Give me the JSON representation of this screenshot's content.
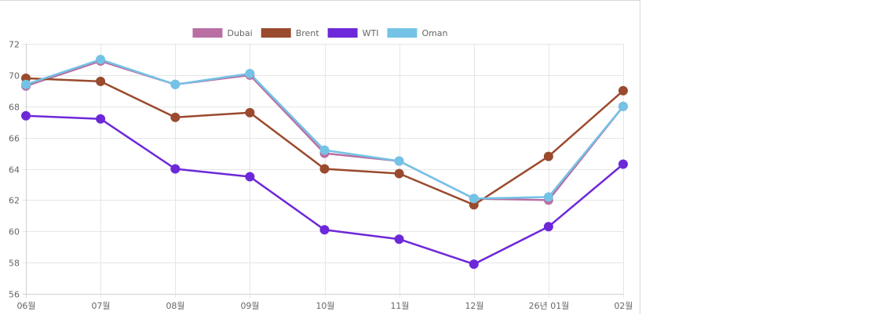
{
  "chart_data": {
    "type": "line",
    "title": "",
    "xlabel": "",
    "ylabel": "",
    "categories": [
      "06월",
      "07월",
      "08월",
      "09월",
      "10월",
      "11월",
      "12월",
      "26년 01월",
      "02월"
    ],
    "ylim": [
      56,
      72
    ],
    "yticks": [
      "56",
      "58",
      "60",
      "62",
      "64",
      "66",
      "68",
      "70",
      "72"
    ],
    "grid": true,
    "legend_position": "top-center",
    "series": [
      {
        "name": "Dubai",
        "color": "#b96fa3",
        "values": [
          69.3,
          70.9,
          69.4,
          70.0,
          65.0,
          64.5,
          62.1,
          62.0,
          68.0
        ]
      },
      {
        "name": "Brent",
        "color": "#9a4a2e",
        "values": [
          69.8,
          69.6,
          67.3,
          67.6,
          64.0,
          63.7,
          61.7,
          64.8,
          69.0
        ]
      },
      {
        "name": "WTI",
        "color": "#6d28d9",
        "values": [
          67.4,
          67.2,
          64.0,
          63.5,
          60.1,
          59.5,
          57.9,
          60.3,
          64.3
        ]
      },
      {
        "name": "Oman",
        "color": "#74c3e6",
        "values": [
          69.4,
          71.0,
          69.4,
          70.1,
          65.2,
          64.5,
          62.1,
          62.2,
          68.0
        ]
      }
    ]
  }
}
